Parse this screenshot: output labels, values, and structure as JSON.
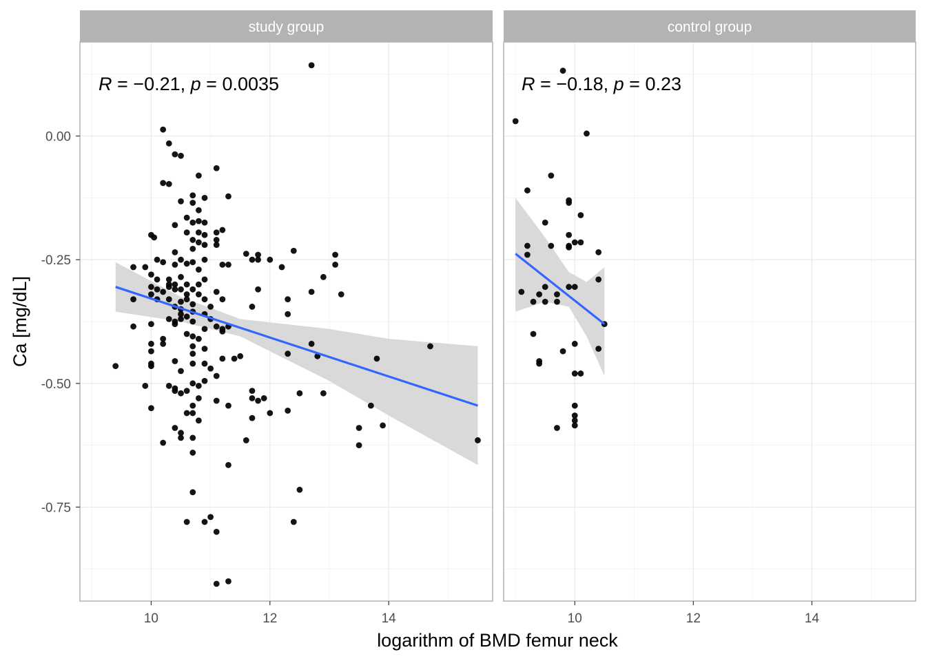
{
  "chart_data": {
    "type": "scatter",
    "xlabel": "logarithm of BMD femur neck",
    "ylabel": "Ca [mg/dL]",
    "xlim": [
      8.8,
      15.75
    ],
    "ylim": [
      -0.94,
      0.19
    ],
    "x_ticks": [
      10,
      12,
      14
    ],
    "x_tick_labels": [
      "10",
      "12",
      "14"
    ],
    "y_ticks": [
      0.0,
      -0.25,
      -0.5,
      -0.75
    ],
    "y_tick_labels": [
      "0.00",
      "-0.25",
      "-0.50",
      "-0.75"
    ],
    "grid": true,
    "legend": "none",
    "colors": {
      "points": "#000000",
      "regression_line": "#3366FF",
      "confidence_band": "#d9d9d9",
      "strip_background": "#b3b3b3",
      "grid": "#ebebeb",
      "panel_border": "#b3b3b3"
    },
    "panels": [
      {
        "label": "study group",
        "annotation": {
          "R": "R",
          "eq1": " = ",
          "minus": "−",
          "r_value": "0.21, ",
          "p": "p",
          "eq2": " = ",
          "p_value": "0.0035"
        },
        "fit": {
          "x0": 9.4,
          "y0": -0.305,
          "x1": 15.5,
          "y1": -0.545
        },
        "band": {
          "x": [
            9.4,
            10.5,
            11.5,
            13.0,
            14.0,
            15.5
          ],
          "upper": [
            -0.255,
            -0.325,
            -0.37,
            -0.39,
            -0.41,
            -0.425
          ],
          "lower": [
            -0.355,
            -0.375,
            -0.405,
            -0.495,
            -0.565,
            -0.665
          ]
        },
        "points": [
          [
            12.7,
            0.143
          ],
          [
            10.2,
            0.013
          ],
          [
            10.3,
            -0.015
          ],
          [
            10.4,
            -0.037
          ],
          [
            10.5,
            -0.04
          ],
          [
            11.1,
            -0.065
          ],
          [
            10.8,
            -0.08
          ],
          [
            10.2,
            -0.095
          ],
          [
            10.3,
            -0.097
          ],
          [
            10.7,
            -0.12
          ],
          [
            10.9,
            -0.125
          ],
          [
            11.3,
            -0.122
          ],
          [
            10.5,
            -0.132
          ],
          [
            10.7,
            -0.135
          ],
          [
            10.8,
            -0.15
          ],
          [
            10.6,
            -0.165
          ],
          [
            10.7,
            -0.175
          ],
          [
            10.8,
            -0.172
          ],
          [
            10.9,
            -0.175
          ],
          [
            10.4,
            -0.18
          ],
          [
            11.2,
            -0.19
          ],
          [
            11.1,
            -0.195
          ],
          [
            10.0,
            -0.2
          ],
          [
            10.05,
            -0.205
          ],
          [
            10.6,
            -0.195
          ],
          [
            10.8,
            -0.195
          ],
          [
            10.9,
            -0.2
          ],
          [
            10.7,
            -0.21
          ],
          [
            11.1,
            -0.21
          ],
          [
            10.8,
            -0.215
          ],
          [
            10.9,
            -0.22
          ],
          [
            11.1,
            -0.22
          ],
          [
            10.7,
            -0.228
          ],
          [
            10.4,
            -0.235
          ],
          [
            11.6,
            -0.238
          ],
          [
            11.8,
            -0.24
          ],
          [
            12.4,
            -0.232
          ],
          [
            13.1,
            -0.24
          ],
          [
            10.1,
            -0.25
          ],
          [
            10.5,
            -0.25
          ],
          [
            10.7,
            -0.255
          ],
          [
            10.9,
            -0.25
          ],
          [
            10.2,
            -0.255
          ],
          [
            10.4,
            -0.26
          ],
          [
            10.6,
            -0.258
          ],
          [
            11.2,
            -0.26
          ],
          [
            11.3,
            -0.26
          ],
          [
            11.7,
            -0.25
          ],
          [
            11.8,
            -0.25
          ],
          [
            12.0,
            -0.25
          ],
          [
            12.2,
            -0.265
          ],
          [
            13.1,
            -0.26
          ],
          [
            9.7,
            -0.265
          ],
          [
            9.9,
            -0.265
          ],
          [
            10.8,
            -0.27
          ],
          [
            10.0,
            -0.28
          ],
          [
            10.1,
            -0.29
          ],
          [
            10.3,
            -0.29
          ],
          [
            10.5,
            -0.285
          ],
          [
            10.9,
            -0.29
          ],
          [
            12.9,
            -0.285
          ],
          [
            10.3,
            -0.3
          ],
          [
            10.4,
            -0.3
          ],
          [
            10.6,
            -0.3
          ],
          [
            10.8,
            -0.3
          ],
          [
            10.0,
            -0.305
          ],
          [
            10.1,
            -0.31
          ],
          [
            10.3,
            -0.305
          ],
          [
            10.4,
            -0.31
          ],
          [
            10.5,
            -0.31
          ],
          [
            10.7,
            -0.31
          ],
          [
            11.1,
            -0.315
          ],
          [
            11.8,
            -0.31
          ],
          [
            12.7,
            -0.315
          ],
          [
            13.2,
            -0.32
          ],
          [
            10.2,
            -0.315
          ],
          [
            10.0,
            -0.32
          ],
          [
            10.1,
            -0.33
          ],
          [
            10.6,
            -0.32
          ],
          [
            10.8,
            -0.32
          ],
          [
            9.7,
            -0.33
          ],
          [
            10.3,
            -0.33
          ],
          [
            10.5,
            -0.335
          ],
          [
            10.6,
            -0.33
          ],
          [
            10.7,
            -0.34
          ],
          [
            10.9,
            -0.33
          ],
          [
            11.2,
            -0.33
          ],
          [
            12.3,
            -0.33
          ],
          [
            10.4,
            -0.345
          ],
          [
            10.5,
            -0.35
          ],
          [
            11.0,
            -0.345
          ],
          [
            11.7,
            -0.345
          ],
          [
            10.7,
            -0.355
          ],
          [
            10.9,
            -0.36
          ],
          [
            10.5,
            -0.36
          ],
          [
            10.6,
            -0.365
          ],
          [
            12.3,
            -0.36
          ],
          [
            10.3,
            -0.37
          ],
          [
            10.4,
            -0.375
          ],
          [
            10.5,
            -0.37
          ],
          [
            10.7,
            -0.375
          ],
          [
            11.0,
            -0.37
          ],
          [
            10.0,
            -0.38
          ],
          [
            10.4,
            -0.38
          ],
          [
            11.1,
            -0.385
          ],
          [
            11.2,
            -0.39
          ],
          [
            11.3,
            -0.385
          ],
          [
            9.7,
            -0.385
          ],
          [
            10.9,
            -0.39
          ],
          [
            10.6,
            -0.4
          ],
          [
            10.7,
            -0.405
          ],
          [
            11.2,
            -0.395
          ],
          [
            10.2,
            -0.41
          ],
          [
            10.8,
            -0.41
          ],
          [
            10.0,
            -0.42
          ],
          [
            10.2,
            -0.42
          ],
          [
            10.7,
            -0.425
          ],
          [
            10.9,
            -0.43
          ],
          [
            12.7,
            -0.42
          ],
          [
            14.7,
            -0.425
          ],
          [
            10.0,
            -0.435
          ],
          [
            10.7,
            -0.44
          ],
          [
            12.3,
            -0.44
          ],
          [
            12.8,
            -0.445
          ],
          [
            11.5,
            -0.445
          ],
          [
            11.2,
            -0.45
          ],
          [
            11.4,
            -0.45
          ],
          [
            13.8,
            -0.45
          ],
          [
            10.4,
            -0.455
          ],
          [
            10.0,
            -0.46
          ],
          [
            10.7,
            -0.46
          ],
          [
            10.0,
            -0.465
          ],
          [
            9.4,
            -0.465
          ],
          [
            10.9,
            -0.46
          ],
          [
            11.0,
            -0.47
          ],
          [
            10.5,
            -0.475
          ],
          [
            11.1,
            -0.485
          ],
          [
            10.9,
            -0.495
          ],
          [
            10.3,
            -0.505
          ],
          [
            10.7,
            -0.5
          ],
          [
            10.8,
            -0.505
          ],
          [
            9.9,
            -0.505
          ],
          [
            10.4,
            -0.51
          ],
          [
            10.4,
            -0.515
          ],
          [
            10.6,
            -0.515
          ],
          [
            10.5,
            -0.52
          ],
          [
            11.7,
            -0.515
          ],
          [
            12.9,
            -0.52
          ],
          [
            12.5,
            -0.52
          ],
          [
            11.7,
            -0.53
          ],
          [
            10.8,
            -0.53
          ],
          [
            11.8,
            -0.535
          ],
          [
            11.1,
            -0.535
          ],
          [
            11.9,
            -0.53
          ],
          [
            11.3,
            -0.545
          ],
          [
            10.7,
            -0.545
          ],
          [
            10.0,
            -0.55
          ],
          [
            10.6,
            -0.56
          ],
          [
            10.7,
            -0.56
          ],
          [
            12.0,
            -0.56
          ],
          [
            12.3,
            -0.555
          ],
          [
            13.7,
            -0.545
          ],
          [
            11.7,
            -0.57
          ],
          [
            10.8,
            -0.575
          ],
          [
            13.9,
            -0.585
          ],
          [
            10.4,
            -0.59
          ],
          [
            13.5,
            -0.59
          ],
          [
            10.5,
            -0.6
          ],
          [
            10.5,
            -0.61
          ],
          [
            10.7,
            -0.61
          ],
          [
            11.6,
            -0.615
          ],
          [
            10.2,
            -0.62
          ],
          [
            13.5,
            -0.625
          ],
          [
            15.5,
            -0.615
          ],
          [
            10.7,
            -0.64
          ],
          [
            11.3,
            -0.665
          ],
          [
            12.5,
            -0.715
          ],
          [
            10.7,
            -0.72
          ],
          [
            11.0,
            -0.77
          ],
          [
            10.6,
            -0.78
          ],
          [
            10.9,
            -0.78
          ],
          [
            12.4,
            -0.78
          ],
          [
            11.1,
            -0.8
          ],
          [
            11.1,
            -0.905
          ],
          [
            11.3,
            -0.9
          ]
        ]
      },
      {
        "label": "control group",
        "annotation": {
          "R": "R",
          "eq1": " = ",
          "minus": "−",
          "r_value": "0.18, ",
          "p": "p",
          "eq2": " = ",
          "p_value": "0.23"
        },
        "fit": {
          "x0": 9.0,
          "y0": -0.238,
          "x1": 10.5,
          "y1": -0.38
        },
        "band": {
          "x": [
            9.0,
            9.5,
            9.9,
            10.2,
            10.5
          ],
          "upper": [
            -0.125,
            -0.205,
            -0.275,
            -0.295,
            -0.265
          ],
          "lower": [
            -0.355,
            -0.335,
            -0.345,
            -0.405,
            -0.485
          ]
        },
        "points": [
          [
            9.8,
            0.132
          ],
          [
            9.0,
            0.03
          ],
          [
            10.2,
            0.005
          ],
          [
            9.2,
            -0.11
          ],
          [
            9.6,
            -0.08
          ],
          [
            9.9,
            -0.13
          ],
          [
            9.9,
            -0.135
          ],
          [
            10.1,
            -0.16
          ],
          [
            9.5,
            -0.175
          ],
          [
            9.9,
            -0.2
          ],
          [
            10.1,
            -0.215
          ],
          [
            10.0,
            -0.215
          ],
          [
            9.9,
            -0.222
          ],
          [
            9.2,
            -0.222
          ],
          [
            9.6,
            -0.222
          ],
          [
            9.9,
            -0.225
          ],
          [
            9.2,
            -0.24
          ],
          [
            10.4,
            -0.235
          ],
          [
            10.4,
            -0.29
          ],
          [
            9.5,
            -0.305
          ],
          [
            9.9,
            -0.305
          ],
          [
            10.0,
            -0.305
          ],
          [
            9.1,
            -0.315
          ],
          [
            9.4,
            -0.32
          ],
          [
            9.7,
            -0.32
          ],
          [
            9.7,
            -0.335
          ],
          [
            9.3,
            -0.335
          ],
          [
            9.5,
            -0.335
          ],
          [
            10.5,
            -0.38
          ],
          [
            9.3,
            -0.4
          ],
          [
            10.0,
            -0.42
          ],
          [
            10.4,
            -0.43
          ],
          [
            9.8,
            -0.435
          ],
          [
            9.4,
            -0.455
          ],
          [
            9.4,
            -0.46
          ],
          [
            10.0,
            -0.48
          ],
          [
            10.1,
            -0.48
          ],
          [
            10.0,
            -0.545
          ],
          [
            10.0,
            -0.565
          ],
          [
            10.0,
            -0.575
          ],
          [
            9.7,
            -0.59
          ],
          [
            10.0,
            -0.585
          ]
        ]
      }
    ]
  }
}
